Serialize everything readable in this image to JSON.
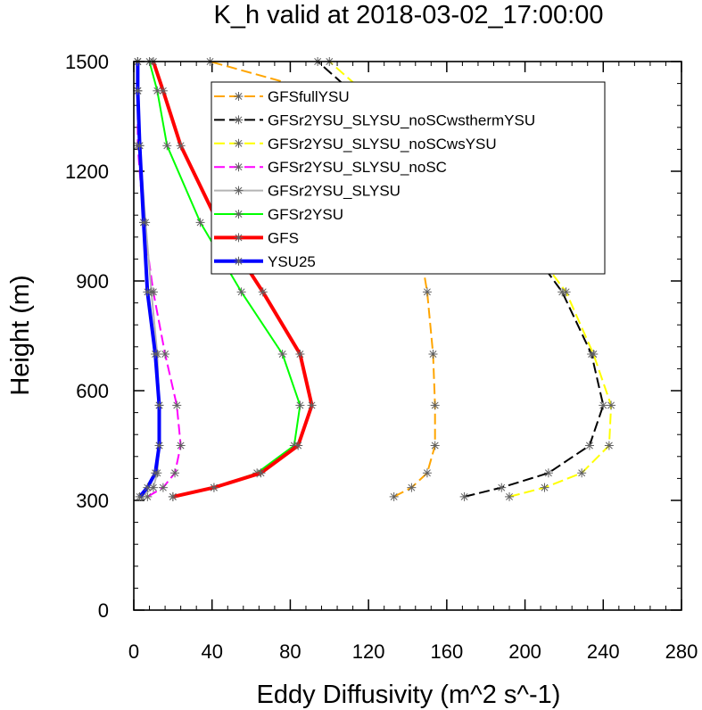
{
  "chart_data": {
    "type": "line",
    "title": "K_h valid at 2018-03-02_17:00:00",
    "xlabel": "Eddy Diffusivity (m^2 s^-1)",
    "ylabel": "Height (m)",
    "xlim": [
      0,
      280
    ],
    "ylim": [
      0,
      1500
    ],
    "xticks": [
      0,
      40,
      80,
      120,
      160,
      200,
      240,
      280
    ],
    "yticks": [
      0,
      300,
      600,
      900,
      1200,
      1500
    ],
    "x_minor_step": 8,
    "y_minor_step": 60,
    "grid": false,
    "legend_position": "top-center",
    "series": [
      {
        "name": "GFSfullYSU",
        "color": "#ffa500",
        "dash": "dashed",
        "width": 2,
        "x": [
          133,
          142,
          150,
          154,
          154,
          153,
          150,
          144,
          127,
          93,
          39
        ],
        "y": [
          310,
          335,
          375,
          450,
          560,
          700,
          870,
          1060,
          1270,
          1420,
          1500
        ]
      },
      {
        "name": "GFSr2YSU_SLYSU_noSCwsthermYSU",
        "color": "#000000",
        "dash": "dashed",
        "width": 2,
        "x": [
          169,
          188,
          212,
          233,
          240,
          234,
          219,
          193,
          157,
          111,
          94
        ],
        "y": [
          310,
          335,
          375,
          450,
          560,
          700,
          870,
          1060,
          1270,
          1420,
          1500
        ]
      },
      {
        "name": "GFSr2YSU_SLYSU_noSCwsYSU",
        "color": "#ffff00",
        "dash": "dashed",
        "width": 2,
        "x": [
          192,
          210,
          229,
          243,
          244,
          235,
          221,
          194,
          160,
          117,
          100
        ],
        "y": [
          310,
          335,
          375,
          450,
          560,
          700,
          870,
          1060,
          1270,
          1420,
          1500
        ]
      },
      {
        "name": "GFSr2YSU_SLYSU_noSC",
        "color": "#ff00ff",
        "dash": "dashed",
        "width": 2,
        "x": [
          7,
          15,
          21,
          24,
          22,
          16,
          10,
          5,
          2,
          2,
          2
        ],
        "y": [
          310,
          335,
          375,
          450,
          560,
          700,
          870,
          1060,
          1270,
          1420,
          1500
        ]
      },
      {
        "name": "GFSr2YSU_SLYSU",
        "color": "#b4b4b4",
        "dash": "solid",
        "width": 2,
        "x": [
          4,
          10,
          12,
          13,
          13,
          12,
          9,
          6,
          3,
          2,
          2
        ],
        "y": [
          310,
          335,
          375,
          450,
          560,
          700,
          870,
          1060,
          1270,
          1420,
          1500
        ]
      },
      {
        "name": "GFSr2YSU",
        "color": "#00ff00",
        "dash": "solid",
        "width": 2,
        "x": [
          20,
          41,
          63,
          82,
          85,
          76,
          55,
          34,
          17,
          12,
          8
        ],
        "y": [
          310,
          335,
          375,
          450,
          560,
          700,
          870,
          1060,
          1270,
          1420,
          1500
        ]
      },
      {
        "name": "GFS",
        "color": "#ff0000",
        "dash": "solid",
        "width": 4,
        "x": [
          20,
          41,
          65,
          84,
          91,
          85,
          66,
          43,
          24,
          15,
          10
        ],
        "y": [
          310,
          335,
          375,
          450,
          560,
          700,
          870,
          1060,
          1270,
          1420,
          1500
        ]
      },
      {
        "name": "YSU25",
        "color": "#0000ff",
        "dash": "solid",
        "width": 4,
        "x": [
          3,
          7,
          11,
          13,
          13,
          11,
          7,
          5,
          3,
          2,
          2
        ],
        "y": [
          310,
          335,
          375,
          450,
          560,
          700,
          870,
          1060,
          1270,
          1420,
          1500
        ]
      }
    ]
  }
}
